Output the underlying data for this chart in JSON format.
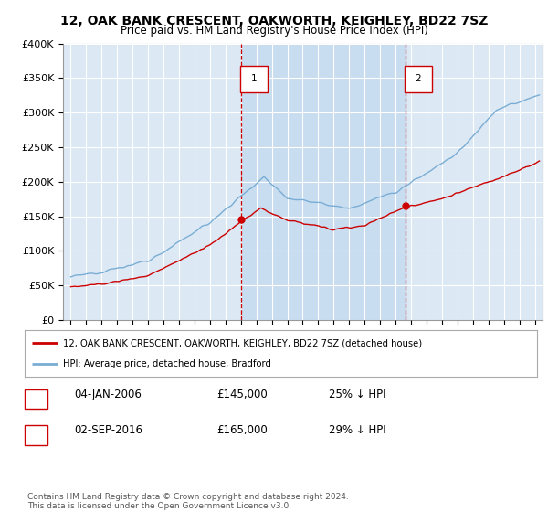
{
  "title": "12, OAK BANK CRESCENT, OAKWORTH, KEIGHLEY, BD22 7SZ",
  "subtitle": "Price paid vs. HM Land Registry's House Price Index (HPI)",
  "ylim": [
    0,
    400000
  ],
  "yticks": [
    0,
    50000,
    100000,
    150000,
    200000,
    250000,
    300000,
    350000,
    400000
  ],
  "ytick_labels": [
    "£0",
    "£50K",
    "£100K",
    "£150K",
    "£200K",
    "£250K",
    "£300K",
    "£350K",
    "£400K"
  ],
  "xlim_start": 1994.5,
  "xlim_end": 2025.5,
  "plot_bg_color": "#dce9f5",
  "outer_bg_color": "#ffffff",
  "red_line_color": "#cc0000",
  "blue_line_color": "#7aadd4",
  "marker_color": "#cc0000",
  "dashed_line_color": "#cc0000",
  "shade_color": "#c8ddf0",
  "transaction1_year": 2006.03,
  "transaction1_price": 145000,
  "transaction2_year": 2016.67,
  "transaction2_price": 165000,
  "legend_line1": "12, OAK BANK CRESCENT, OAKWORTH, KEIGHLEY, BD22 7SZ (detached house)",
  "legend_line2": "HPI: Average price, detached house, Bradford",
  "footnote": "Contains HM Land Registry data © Crown copyright and database right 2024.\nThis data is licensed under the Open Government Licence v3.0."
}
